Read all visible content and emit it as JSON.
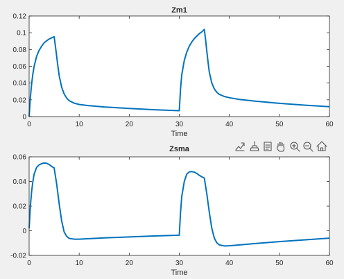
{
  "colors": {
    "figure_bg": "#f0f0f0",
    "axes_bg": "#ffffff",
    "line": "#0072bd",
    "axis": "#262626",
    "grid": "#d9d9d9",
    "toolbar_icon": "#505050"
  },
  "toolbar": {
    "icons": [
      "export-icon",
      "brush-icon",
      "data-tips-icon",
      "pan-hand-icon",
      "zoom-in-icon",
      "zoom-out-icon",
      "home-icon"
    ]
  },
  "chart_data": [
    {
      "type": "line",
      "title": "Zm1",
      "xlabel": "Time",
      "ylabel": "",
      "xlim": [
        0,
        60
      ],
      "ylim": [
        0,
        0.12
      ],
      "xticks": [
        0,
        10,
        20,
        30,
        40,
        50,
        60
      ],
      "yticks": [
        0,
        0.02,
        0.04,
        0.06,
        0.08,
        0.1,
        0.12
      ],
      "xtick_labels": [
        "0",
        "10",
        "20",
        "30",
        "40",
        "50",
        "60"
      ],
      "ytick_labels": [
        "0",
        "0.02",
        "0.04",
        "0.06",
        "0.08",
        "0.1",
        "0.12"
      ],
      "grid": false,
      "series": [
        {
          "x": [
            0,
            0.25,
            0.5,
            0.75,
            1,
            1.5,
            2,
            2.5,
            3,
            3.5,
            4,
            4.5,
            5,
            5.25,
            5.5,
            5.75,
            6,
            6.5,
            7,
            7.5,
            8,
            9,
            10,
            12,
            15,
            20,
            25,
            30,
            30.25,
            30.5,
            31,
            31.5,
            32,
            32.5,
            33,
            33.5,
            34,
            34.5,
            35,
            35.25,
            35.5,
            35.75,
            36,
            36.5,
            37,
            37.5,
            38,
            39,
            40,
            42,
            45,
            50,
            55,
            60
          ],
          "y": [
            0,
            0.023,
            0.039,
            0.051,
            0.06,
            0.072,
            0.079,
            0.084,
            0.088,
            0.0905,
            0.0925,
            0.094,
            0.0952,
            0.084,
            0.072,
            0.06,
            0.049,
            0.035,
            0.027,
            0.022,
            0.019,
            0.016,
            0.0145,
            0.013,
            0.0115,
            0.0097,
            0.0082,
            0.007,
            0.033,
            0.05,
            0.067,
            0.077,
            0.084,
            0.089,
            0.093,
            0.096,
            0.099,
            0.101,
            0.104,
            0.092,
            0.078,
            0.065,
            0.053,
            0.04,
            0.033,
            0.029,
            0.0265,
            0.024,
            0.0225,
            0.0205,
            0.0185,
            0.0158,
            0.0137,
            0.0118
          ]
        }
      ]
    },
    {
      "type": "line",
      "title": "Zsma",
      "xlabel": "Time",
      "ylabel": "",
      "xlim": [
        0,
        60
      ],
      "ylim": [
        -0.02,
        0.06
      ],
      "xticks": [
        0,
        10,
        20,
        30,
        40,
        50,
        60
      ],
      "yticks": [
        -0.02,
        0,
        0.02,
        0.04,
        0.06
      ],
      "xtick_labels": [
        "0",
        "10",
        "20",
        "30",
        "40",
        "50",
        "60"
      ],
      "ytick_labels": [
        "-0.02",
        "0",
        "0.02",
        "0.04",
        "0.06"
      ],
      "grid": false,
      "series": [
        {
          "x": [
            0,
            0.25,
            0.5,
            0.75,
            1,
            1.5,
            2,
            2.5,
            3,
            3.5,
            4,
            4.5,
            5,
            5.5,
            6,
            6.5,
            7,
            7.5,
            8,
            9,
            10,
            12,
            15,
            20,
            25,
            30,
            30.25,
            30.5,
            31,
            31.5,
            32,
            32.5,
            33,
            33.5,
            34,
            34.5,
            35,
            35.5,
            36,
            36.5,
            37,
            37.5,
            38,
            39,
            40,
            42,
            45,
            50,
            55,
            60
          ],
          "y": [
            0.002,
            0.02,
            0.032,
            0.04,
            0.046,
            0.0515,
            0.0535,
            0.0545,
            0.055,
            0.0548,
            0.0538,
            0.0522,
            0.051,
            0.038,
            0.022,
            0.008,
            -0.001,
            -0.0045,
            -0.0062,
            -0.0068,
            -0.0068,
            -0.0064,
            -0.0058,
            -0.005,
            -0.0042,
            -0.0036,
            0.015,
            0.028,
            0.04,
            0.046,
            0.0478,
            0.048,
            0.0476,
            0.0465,
            0.045,
            0.0438,
            0.0428,
            0.03,
            0.015,
            0.002,
            -0.006,
            -0.0098,
            -0.0115,
            -0.0123,
            -0.0122,
            -0.0115,
            -0.0104,
            -0.0088,
            -0.0074,
            -0.006
          ]
        }
      ]
    }
  ]
}
